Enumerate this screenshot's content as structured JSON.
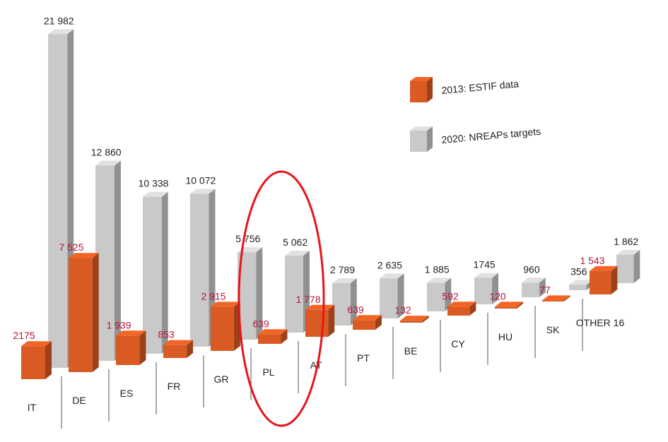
{
  "chart_data": {
    "type": "bar3d",
    "categories": [
      "IT",
      "DE",
      "ES",
      "FR",
      "GR",
      "PL",
      "AT",
      "PT",
      "BE",
      "CY",
      "HU",
      "SK",
      "OTHER 16"
    ],
    "series": [
      {
        "name": "2013: ESTIF data",
        "color": "#d95a22",
        "values": [
          2175,
          7525,
          1939,
          853,
          2915,
          639,
          1778,
          639,
          132,
          592,
          120,
          77,
          1543
        ],
        "value_labels": [
          "2175",
          "7 525",
          "1 939",
          "853",
          "2 915",
          "639",
          "1 778",
          "639",
          "132",
          "592",
          "120",
          "77",
          "1 543"
        ]
      },
      {
        "name": "2020: NREAPs targets",
        "color": "#c9c9c9",
        "values": [
          21982,
          12860,
          10338,
          10072,
          5756,
          5062,
          2789,
          2635,
          1885,
          1745,
          960,
          356,
          1862
        ],
        "value_labels": [
          "21 982",
          "12 860",
          "10 338",
          "10 072",
          "5 756",
          "5 062",
          "2 789",
          "2 635",
          "1 885",
          "1745",
          "960",
          "356",
          "1 862"
        ]
      }
    ]
  }
}
